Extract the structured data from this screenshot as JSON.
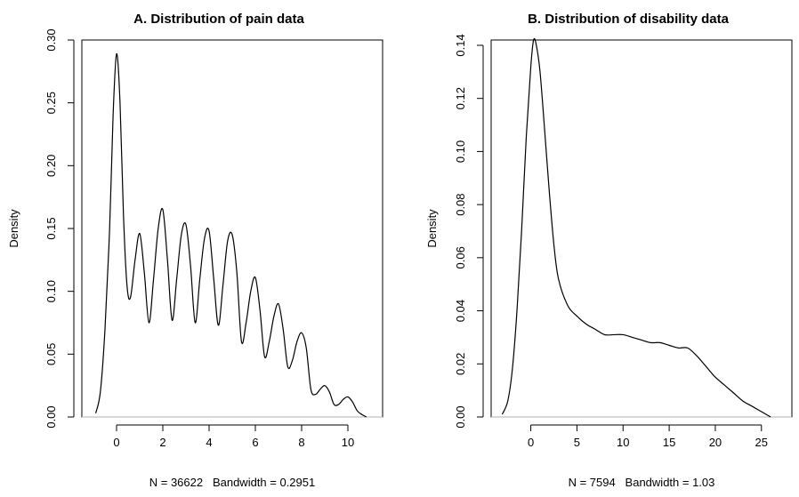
{
  "chart_data": [
    {
      "type": "line",
      "title": "A. Distribution of pain data",
      "xlabel": "N = 36622   Bandwidth = 0.2951",
      "ylabel": "Density",
      "xlim": [
        -1.5,
        11.5
      ],
      "ylim": [
        0,
        0.3
      ],
      "x_ticks": [
        0,
        2,
        4,
        6,
        8,
        10
      ],
      "x_tick_labels": [
        "0",
        "2",
        "4",
        "6",
        "8",
        "10"
      ],
      "y_ticks": [
        0,
        0.05,
        0.1,
        0.15,
        0.2,
        0.25,
        0.3
      ],
      "y_tick_labels": [
        "0.00",
        "0.05",
        "0.10",
        "0.15",
        "0.20",
        "0.25",
        "0.30"
      ],
      "grid": false,
      "reference_line_y": 0,
      "series": [
        {
          "x": [
            -0.9,
            -0.7,
            -0.5,
            -0.3,
            -0.15,
            0,
            0.15,
            0.3,
            0.45,
            0.6,
            0.8,
            1.0,
            1.2,
            1.4,
            1.6,
            1.8,
            2.0,
            2.2,
            2.4,
            2.6,
            2.8,
            3.0,
            3.2,
            3.4,
            3.6,
            3.8,
            4.0,
            4.2,
            4.4,
            4.6,
            4.8,
            5.0,
            5.2,
            5.4,
            5.6,
            5.8,
            6.0,
            6.2,
            6.4,
            6.6,
            6.8,
            7.0,
            7.2,
            7.4,
            7.6,
            7.8,
            8.0,
            8.2,
            8.4,
            8.6,
            8.8,
            9.0,
            9.2,
            9.4,
            9.6,
            9.8,
            10.0,
            10.2,
            10.4,
            10.6,
            10.8
          ],
          "y": [
            0.003,
            0.02,
            0.07,
            0.15,
            0.24,
            0.289,
            0.25,
            0.16,
            0.105,
            0.095,
            0.125,
            0.146,
            0.115,
            0.075,
            0.11,
            0.15,
            0.165,
            0.125,
            0.077,
            0.11,
            0.145,
            0.153,
            0.12,
            0.075,
            0.11,
            0.142,
            0.148,
            0.11,
            0.073,
            0.105,
            0.14,
            0.145,
            0.115,
            0.06,
            0.075,
            0.1,
            0.111,
            0.085,
            0.048,
            0.06,
            0.08,
            0.09,
            0.07,
            0.04,
            0.045,
            0.06,
            0.067,
            0.055,
            0.022,
            0.018,
            0.022,
            0.025,
            0.02,
            0.01,
            0.01,
            0.014,
            0.016,
            0.012,
            0.005,
            0.002,
            0.0
          ]
        }
      ]
    },
    {
      "type": "line",
      "title": "B. Distribution of disability data",
      "xlabel": "N = 7594   Bandwidth = 1.03",
      "ylabel": "Density",
      "xlim": [
        -4.3,
        28.3
      ],
      "ylim": [
        0,
        0.142
      ],
      "x_ticks": [
        0,
        5,
        10,
        15,
        20,
        25
      ],
      "x_tick_labels": [
        "0",
        "5",
        "10",
        "15",
        "20",
        "25"
      ],
      "y_ticks": [
        0,
        0.02,
        0.04,
        0.06,
        0.08,
        0.1,
        0.12,
        0.14
      ],
      "y_tick_labels": [
        "0.00",
        "0.02",
        "0.04",
        "0.06",
        "0.08",
        "0.10",
        "0.12",
        "0.14"
      ],
      "grid": false,
      "reference_line_y": 0,
      "series": [
        {
          "x": [
            -3.1,
            -2.5,
            -2,
            -1.5,
            -1,
            -0.5,
            0,
            0.3,
            0.6,
            1.0,
            1.5,
            2.0,
            2.5,
            3.0,
            4.0,
            5.0,
            6.0,
            7.0,
            8.0,
            9.0,
            10.0,
            11.0,
            12.0,
            13.0,
            14.0,
            15.0,
            16.0,
            17.0,
            18.0,
            19.0,
            20.0,
            21.0,
            22.0,
            23.0,
            24.0,
            25.0,
            26.0
          ],
          "y": [
            0.001,
            0.006,
            0.018,
            0.04,
            0.07,
            0.105,
            0.132,
            0.142,
            0.14,
            0.13,
            0.108,
            0.085,
            0.065,
            0.052,
            0.042,
            0.038,
            0.035,
            0.033,
            0.031,
            0.031,
            0.031,
            0.03,
            0.029,
            0.028,
            0.028,
            0.027,
            0.026,
            0.026,
            0.023,
            0.019,
            0.015,
            0.012,
            0.009,
            0.006,
            0.004,
            0.002,
            0.0
          ]
        }
      ]
    }
  ]
}
